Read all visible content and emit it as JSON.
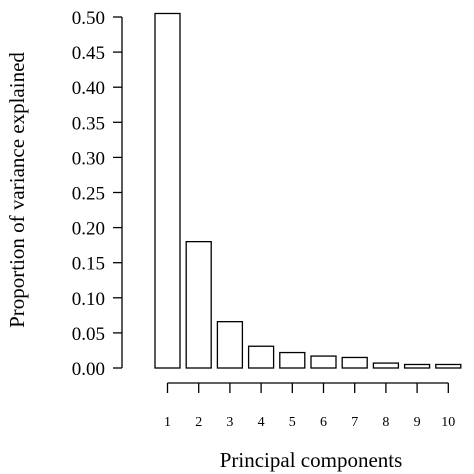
{
  "chart_data": {
    "type": "bar",
    "title": "",
    "xlabel": "Principal components",
    "ylabel": "Proportion of variance explained",
    "categories": [
      "1",
      "2",
      "3",
      "4",
      "5",
      "6",
      "7",
      "8",
      "9",
      "10"
    ],
    "values": [
      0.505,
      0.18,
      0.066,
      0.031,
      0.022,
      0.017,
      0.015,
      0.007,
      0.005,
      0.005
    ],
    "ylim": [
      0,
      0.5
    ],
    "yticks": [
      0.0,
      0.05,
      0.1,
      0.15,
      0.2,
      0.25,
      0.3,
      0.35,
      0.4,
      0.45,
      0.5
    ],
    "ytick_labels": [
      "0.00",
      "0.05",
      "0.10",
      "0.15",
      "0.20",
      "0.25",
      "0.30",
      "0.35",
      "0.40",
      "0.45",
      "0.50"
    ],
    "grid": false,
    "bar_fill": "#ffffff",
    "bar_stroke": "#000000"
  }
}
